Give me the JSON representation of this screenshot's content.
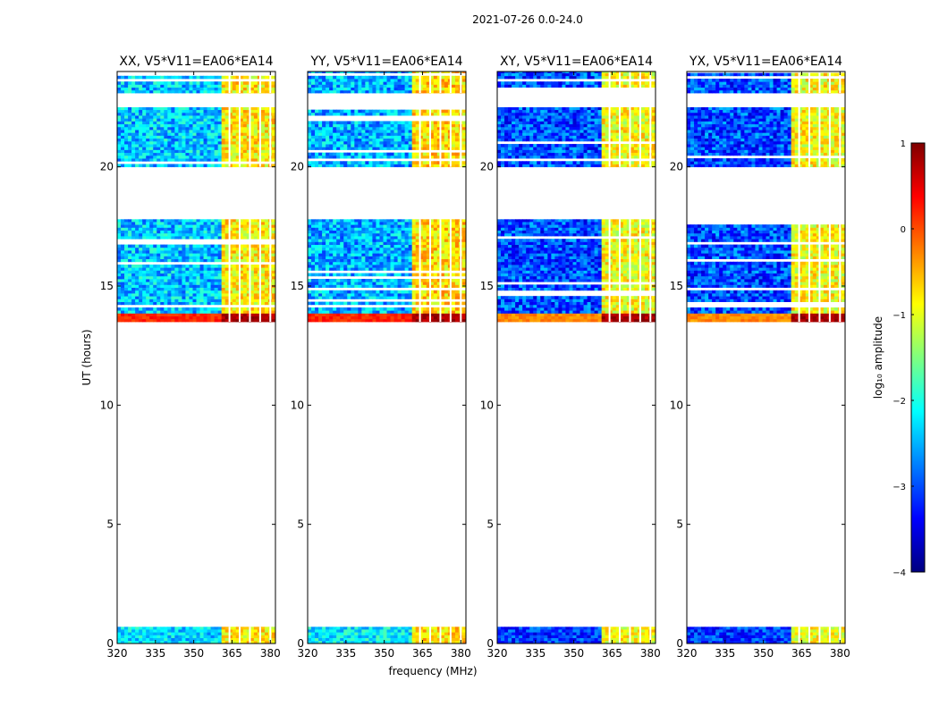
{
  "figure": {
    "suptitle": "2021-07-26 0.0-24.0"
  },
  "colors": {
    "colormap": [
      "#00007f",
      "#0000ff",
      "#007fff",
      "#00ffff",
      "#7fff7f",
      "#ffff00",
      "#ff7f00",
      "#ff0000",
      "#7f0000"
    ]
  },
  "chart_data": {
    "type": "heatmap",
    "shared_xlabel": "frequency (MHz)",
    "ylabel": "UT (hours)",
    "xlim": [
      320,
      382
    ],
    "ylim": [
      0,
      24
    ],
    "xticks": [
      320,
      335,
      350,
      365,
      380
    ],
    "yticks": [
      0,
      5,
      10,
      15,
      20
    ],
    "rfi_band_mhz": [
      360,
      382
    ],
    "rfi_gaps_mhz": [
      364,
      368,
      372,
      376,
      380
    ],
    "observed_ut_intervals": [
      [
        0.0,
        0.7
      ],
      [
        13.5,
        17.8
      ],
      [
        20.0,
        22.5
      ],
      [
        23.1,
        24.0
      ]
    ],
    "panels": [
      {
        "title": "XX, V5*V11=EA06*EA14",
        "background_level": -2.4,
        "band_level": -0.8,
        "early_level": -2.3
      },
      {
        "title": "YY, V5*V11=EA06*EA14",
        "background_level": -2.5,
        "band_level": -0.7,
        "early_level": -2.2
      },
      {
        "title": "XY, V5*V11=EA06*EA14",
        "background_level": -3.0,
        "band_level": -0.9,
        "early_level": -3.1
      },
      {
        "title": "YX, V5*V11=EA06*EA14",
        "background_level": -3.0,
        "band_level": -0.9,
        "early_level": -3.1
      }
    ],
    "colorbar": {
      "label": "log₁₀ amplitude",
      "range": [
        -4,
        1
      ],
      "ticks": [
        1,
        0,
        -1,
        -2,
        -3,
        -4
      ],
      "tick_labels": [
        "1",
        "0",
        "−1",
        "−2",
        "−3",
        "−4"
      ]
    }
  }
}
